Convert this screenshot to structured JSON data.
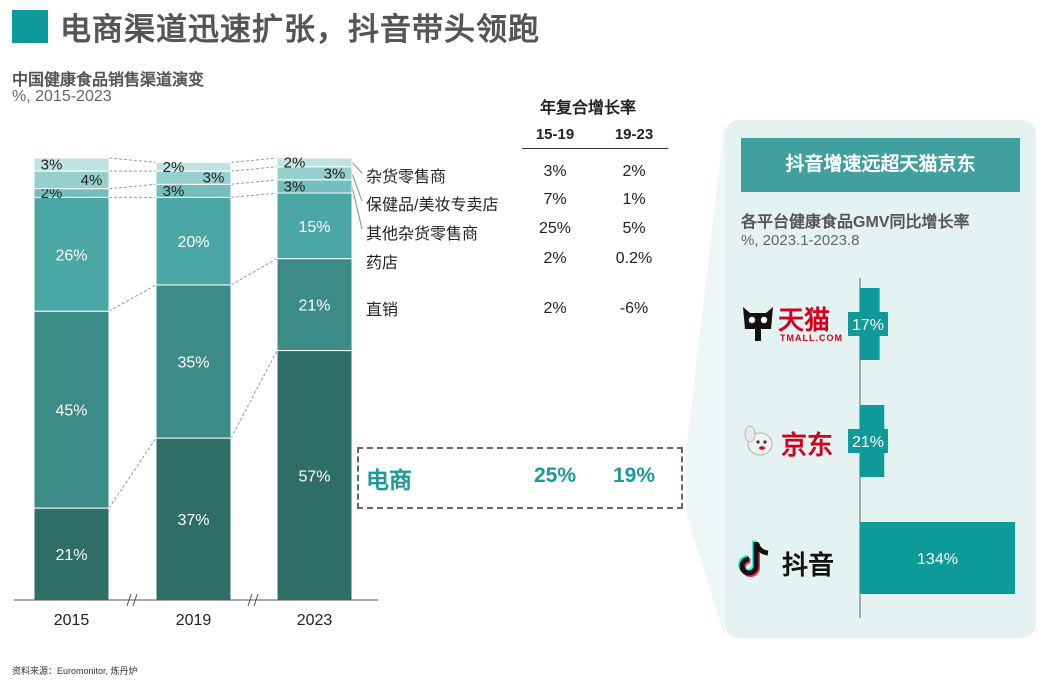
{
  "page": {
    "title": "电商渠道迅速扩张，抖音带头领跑",
    "source": "资料来源：Euromonitor, 炼丹炉"
  },
  "left_chart": {
    "title": "中国健康食品销售渠道演变",
    "unit": "%, 2015-2023"
  },
  "cagr": {
    "header": "年复合增长率",
    "col1": "15-19",
    "col2": "19-23",
    "rows": [
      {
        "label": "杂货零售商",
        "v1": "3%",
        "v2": "2%"
      },
      {
        "label": "保健品/美妆专卖店",
        "v1": "7%",
        "v2": "1%"
      },
      {
        "label": "其他杂货零售商",
        "v1": "25%",
        "v2": "5%"
      },
      {
        "label": "药店",
        "v1": "2%",
        "v2": "0.2%"
      },
      {
        "label": "直销",
        "v1": "2%",
        "v2": "-6%"
      }
    ],
    "ecommerce": {
      "label": "电商",
      "v1": "25%",
      "v2": "19%"
    }
  },
  "right_panel": {
    "header": "抖音增速远超天猫京东",
    "title": "各平台健康食品GMV同比增长率",
    "unit": "%, 2023.1-2023.8",
    "logos": {
      "tmall": "天猫",
      "tmall_sub": "TMALL.COM",
      "jd": "京东",
      "douyin": "抖音"
    }
  },
  "chart_data": [
    {
      "type": "bar",
      "stacked": true,
      "title": "中国健康食品销售渠道演变",
      "ylabel": "%",
      "categories": [
        "2015",
        "2019",
        "2023"
      ],
      "series": [
        {
          "name": "电商",
          "values": [
            21,
            37,
            57
          ],
          "labels": [
            "21%",
            "37%",
            "57%"
          ],
          "color": "#2f6e66"
        },
        {
          "name": "直销",
          "values": [
            45,
            35,
            21
          ],
          "labels": [
            "45%",
            "35%",
            "21%"
          ],
          "color": "#3b8c86"
        },
        {
          "name": "药店",
          "values": [
            26,
            20,
            15
          ],
          "labels": [
            "26%",
            "20%",
            "15%"
          ],
          "color": "#4aa7a6"
        },
        {
          "name": "其他杂货零售商",
          "values": [
            2,
            3,
            3
          ],
          "labels": [
            "2%",
            "3%",
            "3%"
          ],
          "color": "#72bfbe"
        },
        {
          "name": "保健品/美妆专卖店",
          "values": [
            4,
            3,
            3
          ],
          "labels": [
            "4%",
            "3%",
            "3%"
          ],
          "color": "#95d0cf"
        },
        {
          "name": "杂货零售商",
          "values": [
            3,
            2,
            2
          ],
          "labels": [
            "3%",
            "2%",
            "2%"
          ],
          "color": "#bfe3e2"
        }
      ],
      "ylim": [
        0,
        101
      ]
    },
    {
      "type": "bar",
      "orientation": "horizontal",
      "title": "各平台健康食品GMV同比增长率",
      "categories": [
        "天猫",
        "京东",
        "抖音"
      ],
      "values": [
        17,
        21,
        134
      ],
      "labels": [
        "17%",
        "21%",
        "134%"
      ],
      "color": "#0e9a98",
      "xlim": [
        0,
        134
      ]
    }
  ]
}
